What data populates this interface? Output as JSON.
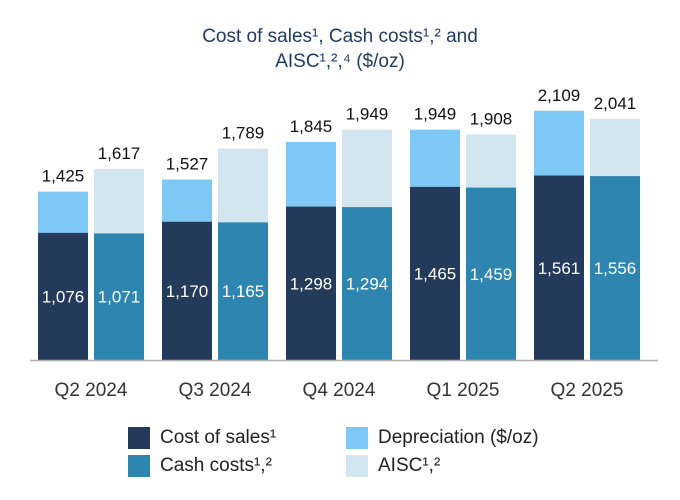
{
  "chart_data": {
    "type": "bar",
    "title_lines": [
      "Cost of sales¹, Cash costs¹,² and",
      "AISC¹,²,⁴ ($/oz)"
    ],
    "categories": [
      "Q2 2024",
      "Q3 2024",
      "Q4 2024",
      "Q1 2025",
      "Q2 2025"
    ],
    "series": [
      {
        "name": "Cost of sales¹",
        "values": [
          1076,
          1170,
          1298,
          1465,
          1561
        ],
        "color": "#243a5a"
      },
      {
        "name": "Depreciation ($/oz)",
        "values_total": [
          1425,
          1527,
          1845,
          1949,
          2109
        ],
        "color": "#7ec8f5"
      },
      {
        "name": "Cash costs¹,²",
        "values": [
          1071,
          1165,
          1294,
          1459,
          1556
        ],
        "color": "#2e86b0"
      },
      {
        "name": "AISC¹,²",
        "values_total": [
          1617,
          1789,
          1949,
          1908,
          2041
        ],
        "color": "#d3e6f0"
      }
    ],
    "total_labels_left": [
      "1,425",
      "1,527",
      "1,845",
      "1,949",
      "2,109"
    ],
    "total_labels_right": [
      "1,617",
      "1,789",
      "1,949",
      "1,908",
      "2,041"
    ],
    "inner_labels_left": [
      "1,076",
      "1,170",
      "1,298",
      "1,465",
      "1,561"
    ],
    "inner_labels_right": [
      "1,071",
      "1,165",
      "1,294",
      "1,459",
      "1,556"
    ],
    "ylim": [
      0,
      2200
    ],
    "grid": false,
    "legend_placement": "bottom",
    "legend": [
      {
        "label": "Cost of sales¹",
        "color": "#243a5a"
      },
      {
        "label": "Depreciation ($/oz)",
        "color": "#7ec8f5"
      },
      {
        "label": "Cash costs¹,²",
        "color": "#2e86b0"
      },
      {
        "label": "AISC¹,²",
        "color": "#d3e6f0"
      }
    ]
  }
}
